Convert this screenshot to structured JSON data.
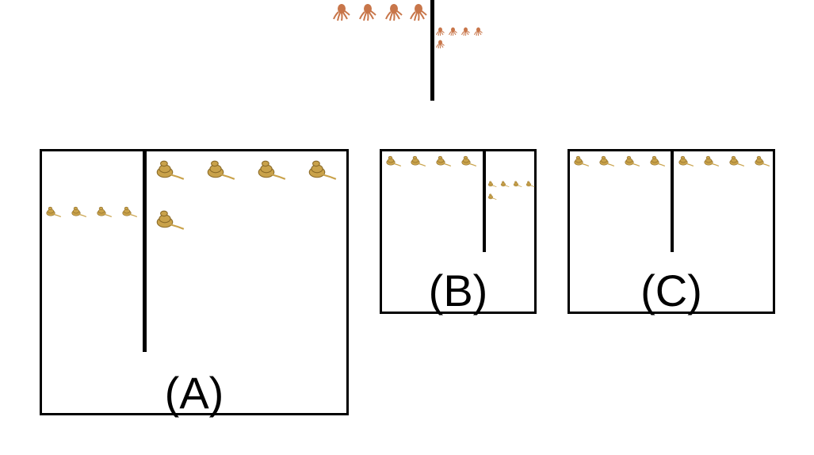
{
  "example": {
    "left_items": {
      "icon": "octopus-icon",
      "count": 4,
      "size": "large"
    },
    "right_items": {
      "icon": "octopus-icon",
      "count": 5,
      "size": "small"
    }
  },
  "options": [
    {
      "label": "(A)",
      "left_items": {
        "icon": "snake-icon",
        "count": 4,
        "size": "small"
      },
      "right_items": {
        "icon": "snake-icon",
        "count": 5,
        "size": "large"
      }
    },
    {
      "label": "(B)",
      "left_items": {
        "icon": "snake-icon",
        "count": 4,
        "size": "large"
      },
      "right_items": {
        "icon": "snake-icon",
        "count": 5,
        "size": "small"
      }
    },
    {
      "label": "(C)",
      "left_items": {
        "icon": "snake-icon",
        "count": 4,
        "size": "large"
      },
      "right_items": {
        "icon": "snake-icon",
        "count": 4,
        "size": "large"
      }
    }
  ],
  "colors": {
    "octopus": "#c8764a",
    "snake": "#c9a24a",
    "line": "#000000"
  }
}
